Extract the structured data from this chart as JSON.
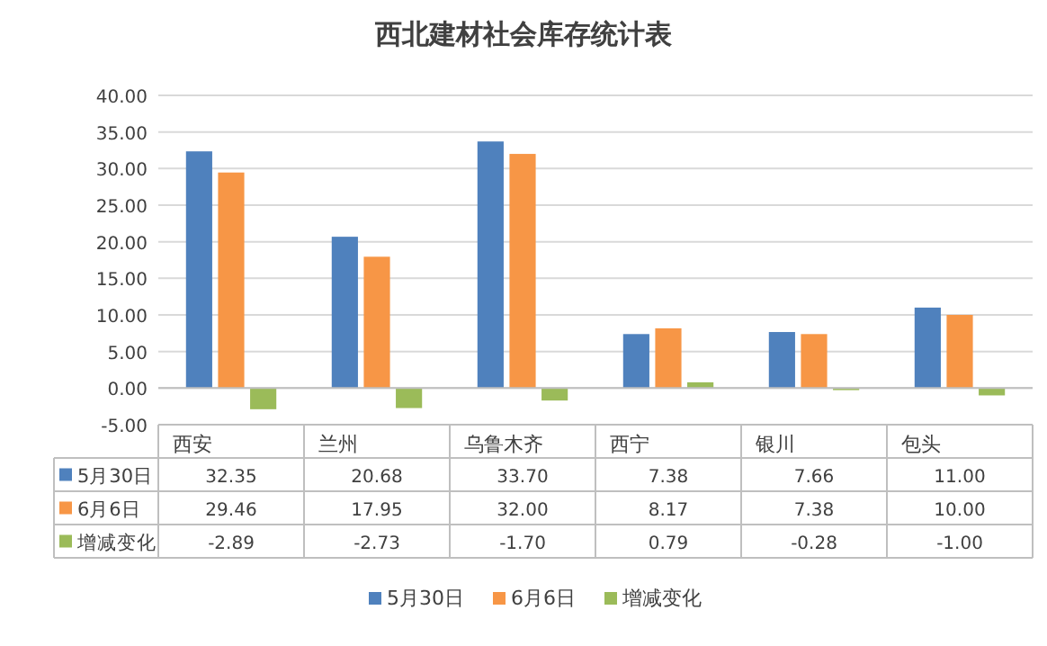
{
  "chart_data": {
    "type": "bar",
    "title": "西北建材社会库存统计表",
    "categories": [
      "西安",
      "兰州",
      "乌鲁木齐",
      "西宁",
      "银川",
      "包头"
    ],
    "series": [
      {
        "name": "5月30日",
        "color": "#4f81bd",
        "values": [
          32.35,
          20.68,
          33.7,
          7.38,
          7.66,
          11.0
        ],
        "value_labels": [
          "32.35",
          "20.68",
          "33.70",
          "7.38",
          "7.66",
          "11.00"
        ]
      },
      {
        "name": "6月6日",
        "color": "#f79646",
        "values": [
          29.46,
          17.95,
          32.0,
          8.17,
          7.38,
          10.0
        ],
        "value_labels": [
          "29.46",
          "17.95",
          "32.00",
          "8.17",
          "7.38",
          "10.00"
        ]
      },
      {
        "name": "增减变化",
        "color": "#9bbb59",
        "values": [
          -2.89,
          -2.73,
          -1.7,
          0.79,
          -0.28,
          -1.0
        ],
        "value_labels": [
          "-2.89",
          "-2.73",
          "-1.70",
          "0.79",
          "-0.28",
          "-1.00"
        ]
      }
    ],
    "ylim": [
      -5,
      40
    ],
    "yticks": [
      {
        "value": -5,
        "label": "-5.00"
      },
      {
        "value": 0,
        "label": "0.00"
      },
      {
        "value": 5,
        "label": "5.00"
      },
      {
        "value": 10,
        "label": "10.00"
      },
      {
        "value": 15,
        "label": "15.00"
      },
      {
        "value": 20,
        "label": "20.00"
      },
      {
        "value": 25,
        "label": "25.00"
      },
      {
        "value": 30,
        "label": "30.00"
      },
      {
        "value": 35,
        "label": "35.00"
      },
      {
        "value": 40,
        "label": "40.00"
      }
    ],
    "grid": "y",
    "legend": "bottom"
  }
}
